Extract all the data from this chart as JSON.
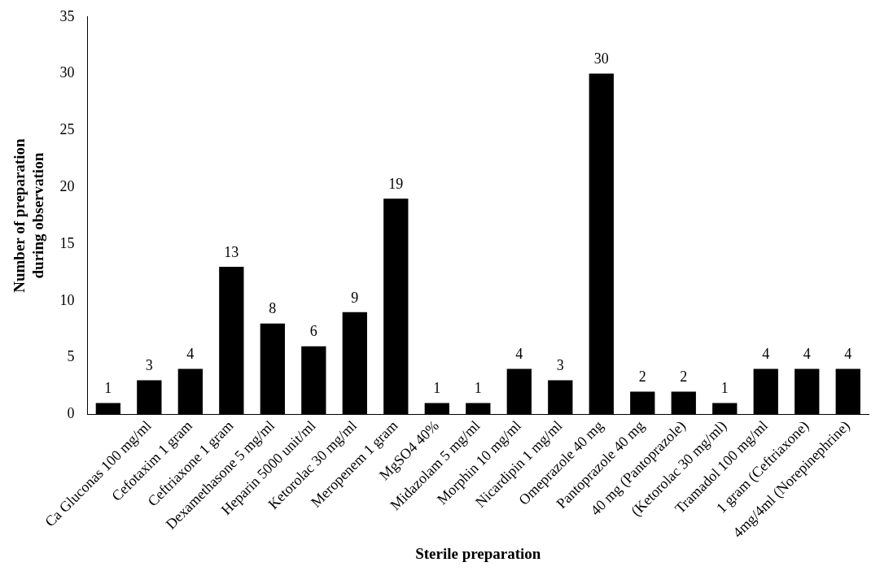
{
  "chart_data": {
    "type": "bar",
    "xlabel": "Sterile preparation",
    "ylabel": "Number of preparation during observation",
    "categories": [
      null,
      "Ca Gluconas 100 mg/ml",
      "Cefotaxim 1 gram",
      "Ceftriaxone 1 gram",
      "Dexamethasone 5 mg/ml",
      "Heparin 5000 unit/ml",
      "Ketorolac 30 mg/ml",
      "Meropenem 1 gram",
      "MgSO4 40%",
      "Midazolam 5 mg/ml",
      "Morphin 10 mg/ml",
      "Nicardipin 1 mg/ml",
      "Omeprazole 40 mg",
      "Pantoprazole 40 mg",
      "40 mg (Pantoprazole)",
      "(Ketorolac 30 mg/ml)",
      "Tramadol 100 mg/ml",
      "1 gram (Ceftriaxone)",
      "4mg/4ml (Norepinephrine)"
    ],
    "values": [
      1,
      3,
      4,
      13,
      8,
      6,
      9,
      19,
      1,
      1,
      4,
      3,
      30,
      2,
      2,
      1,
      4,
      4,
      4
    ],
    "color": "#000000",
    "ylim": [
      0,
      35
    ],
    "yticks": [
      0,
      5,
      10,
      15,
      20,
      25,
      30,
      35
    ],
    "grid": false,
    "legend": false,
    "data_labels": true
  }
}
